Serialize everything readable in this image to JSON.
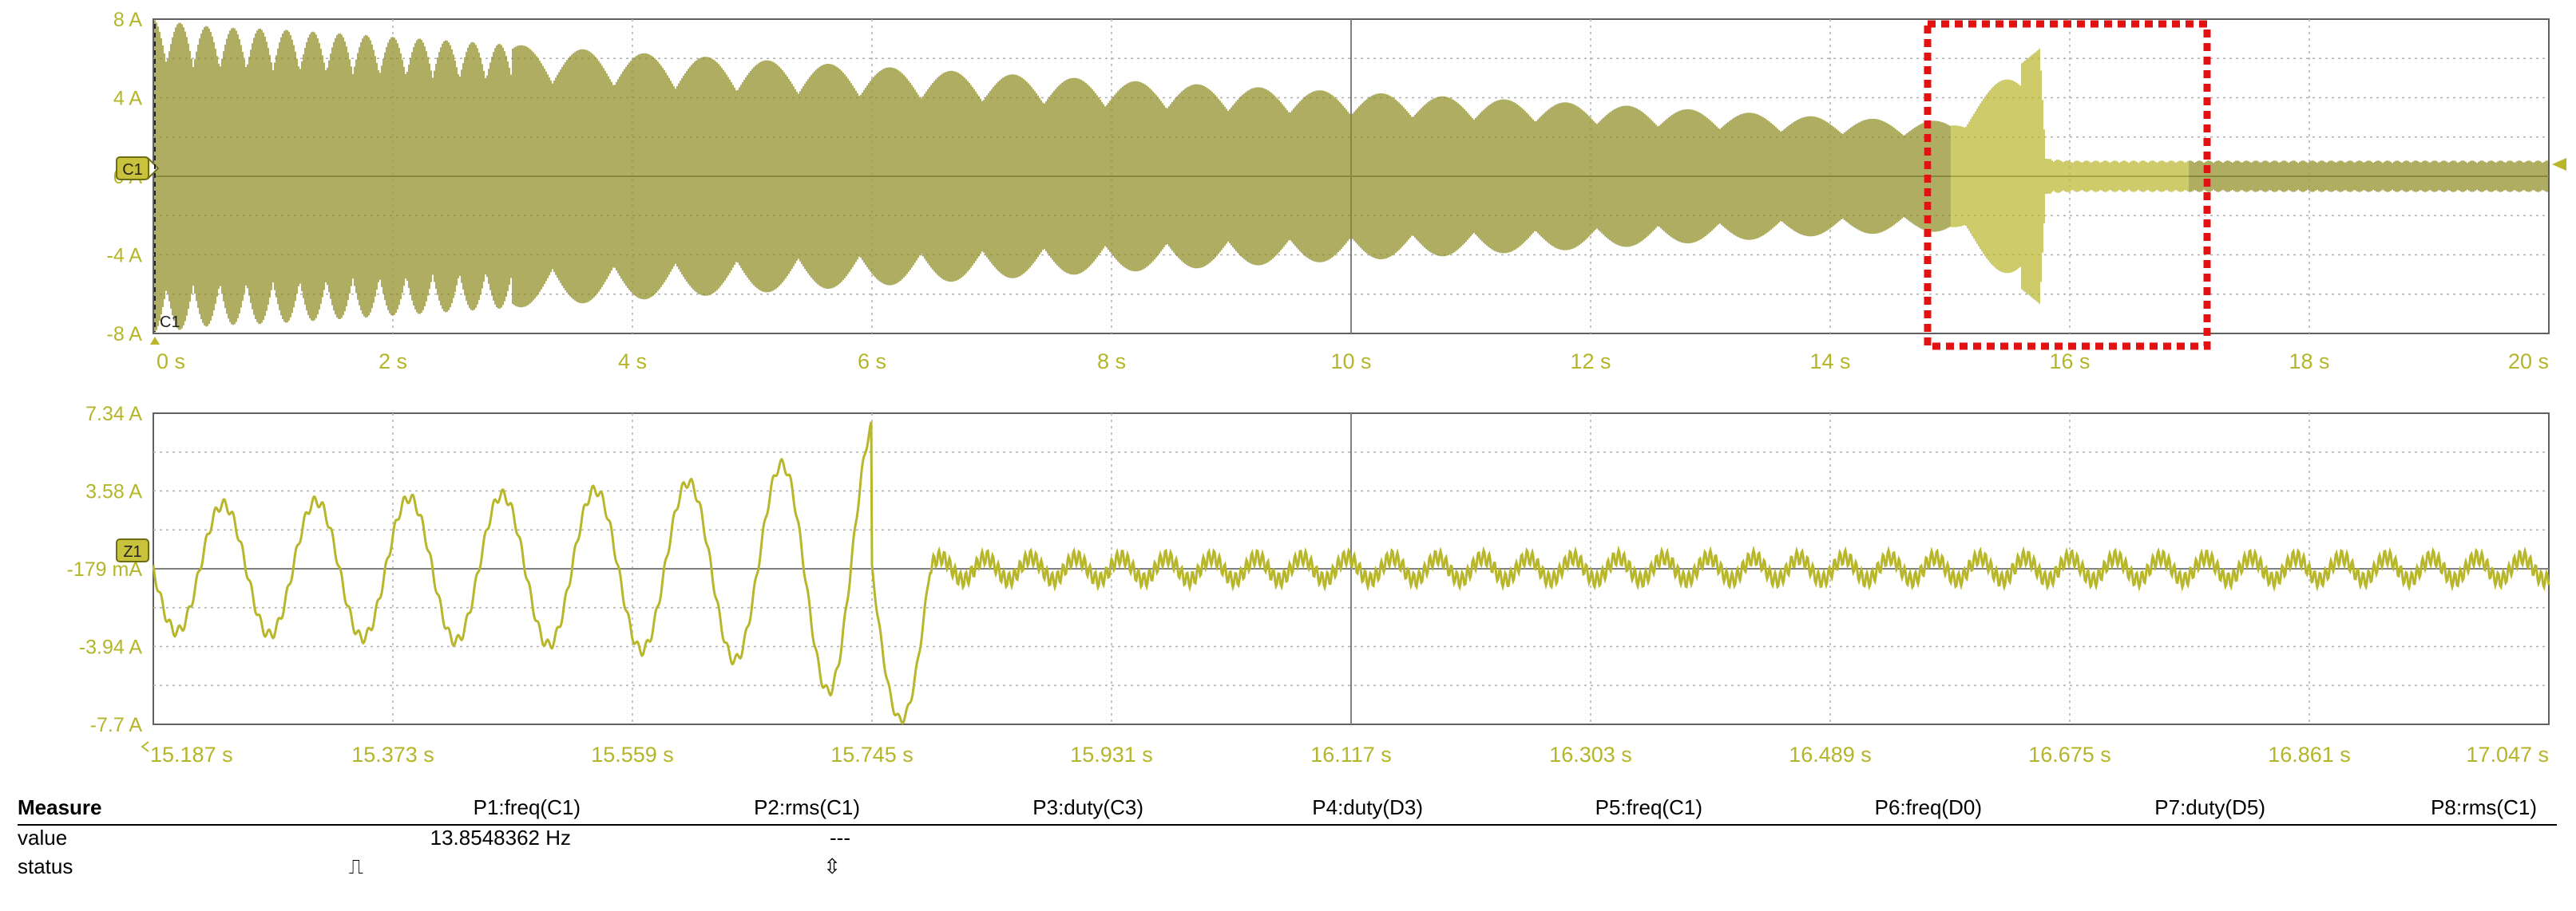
{
  "colors": {
    "trace": "#8c8a1e",
    "zoom_trace": "#b8b62a",
    "grid_major": "#808080",
    "grid_minor": "#b0b0b0",
    "label": "#b5b52a",
    "highlight": "#e31212"
  },
  "top_panel": {
    "channel_badge": "C1",
    "cursor_label": "C1",
    "y_ticks": [
      "8 A",
      "4 A",
      "0 A",
      "-4 A",
      "-8 A"
    ],
    "x_ticks": [
      "0 s",
      "2 s",
      "4 s",
      "6 s",
      "8 s",
      "10 s",
      "12 s",
      "14 s",
      "16 s",
      "18 s",
      "20 s"
    ]
  },
  "zoom_panel": {
    "channel_badge": "Z1",
    "y_ticks": [
      "7.34 A",
      "3.58 A",
      "-179 mA",
      "-3.94 A",
      "-7.7 A"
    ],
    "x_ticks": [
      "15.187 s",
      "15.373 s",
      "15.559 s",
      "15.745 s",
      "15.931 s",
      "16.117 s",
      "16.303 s",
      "16.489 s",
      "16.675 s",
      "16.861 s",
      "17.047 s"
    ]
  },
  "chart_data": [
    {
      "type": "line",
      "panel": "top",
      "xlim": [
        0,
        20
      ],
      "ylim": [
        -8,
        8
      ],
      "grid": true,
      "series": [
        {
          "x": [
            0.0,
            0.5,
            1.0,
            2.0,
            4.0,
            6.0,
            8.0,
            10.0,
            12.0,
            14.0,
            15.0,
            15.75,
            15.8,
            16.0,
            17.0,
            18.0,
            20.0
          ],
          "y_envelope": [
            8.0,
            7.6,
            7.5,
            7.1,
            6.3,
            5.6,
            4.9,
            4.3,
            3.7,
            3.0,
            2.8,
            6.5,
            0.9,
            0.8,
            0.8,
            0.8,
            0.8
          ]
        }
      ],
      "annotations": [
        {
          "kind": "dashed-rectangle",
          "x_range": [
            15.0,
            17.0
          ],
          "y_range": [
            -8,
            8
          ]
        }
      ]
    },
    {
      "type": "line",
      "panel": "zoom",
      "xlim": [
        15.187,
        17.047
      ],
      "ylim": [
        -7.7,
        7.34
      ],
      "grid": true,
      "series": [
        {
          "x": [
            15.187,
            15.28,
            15.373,
            15.466,
            15.559,
            15.65,
            15.7,
            15.745,
            15.76,
            15.8,
            15.931,
            16.117,
            16.303,
            16.489,
            16.675,
            16.861,
            17.047
          ],
          "y_amplitude": [
            3.0,
            3.2,
            3.4,
            3.6,
            3.9,
            4.5,
            5.6,
            7.0,
            -7.5,
            0.8,
            0.8,
            0.8,
            0.8,
            0.8,
            0.8,
            0.8,
            0.8
          ],
          "frequency_hz": 13.85
        }
      ]
    }
  ],
  "measure": {
    "header": "Measure",
    "row_labels": [
      "value",
      "status"
    ],
    "columns": [
      {
        "name": "P1:freq(C1)",
        "value": "13.8548362 Hz",
        "status": "⎍"
      },
      {
        "name": "P2:rms(C1)",
        "value": "---",
        "status": "⇳"
      },
      {
        "name": "P3:duty(C3)",
        "value": "",
        "status": ""
      },
      {
        "name": "P4:duty(D3)",
        "value": "",
        "status": ""
      },
      {
        "name": "P5:freq(C1)",
        "value": "",
        "status": ""
      },
      {
        "name": "P6:freq(D0)",
        "value": "",
        "status": ""
      },
      {
        "name": "P7:duty(D5)",
        "value": "",
        "status": ""
      },
      {
        "name": "P8:rms(C1)",
        "value": "",
        "status": ""
      }
    ]
  }
}
